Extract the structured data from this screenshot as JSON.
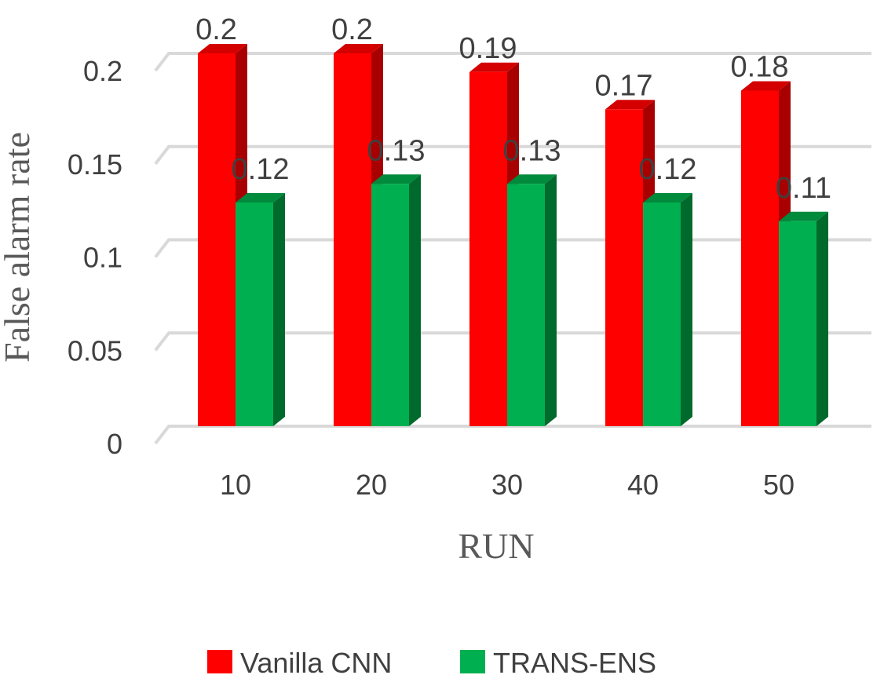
{
  "chart_data": {
    "type": "bar",
    "style": "3d-clustered-column",
    "categories": [
      "10",
      "20",
      "30",
      "40",
      "50"
    ],
    "series": [
      {
        "name": "Vanilla CNN",
        "values": [
          0.2,
          0.2,
          0.19,
          0.17,
          0.18
        ],
        "color": "#ff0000",
        "side_color": "#a80000",
        "top_color": "#d40000"
      },
      {
        "name": "TRANS-ENS",
        "values": [
          0.12,
          0.13,
          0.13,
          0.12,
          0.11
        ],
        "color": "#00b050",
        "side_color": "#006a2c",
        "top_color": "#008a3c"
      }
    ],
    "data_labels": {
      "Vanilla CNN": [
        "0.2",
        "0.2",
        "0.19",
        "0.17",
        "0.18"
      ],
      "TRANS-ENS": [
        "0.12",
        "0.13",
        "0.13",
        "0.12",
        "0.11"
      ]
    },
    "xlabel": "RUN",
    "ylabel": "False alarm rate",
    "ylim": [
      0,
      0.2
    ],
    "yticks": [
      0,
      0.05,
      0.1,
      0.15,
      0.2
    ],
    "ytick_labels": [
      "0",
      "0.05",
      "0.1",
      "0.15",
      "0.2"
    ],
    "grid": true,
    "grid_color": "#d9d9d9",
    "legend": "bottom"
  }
}
